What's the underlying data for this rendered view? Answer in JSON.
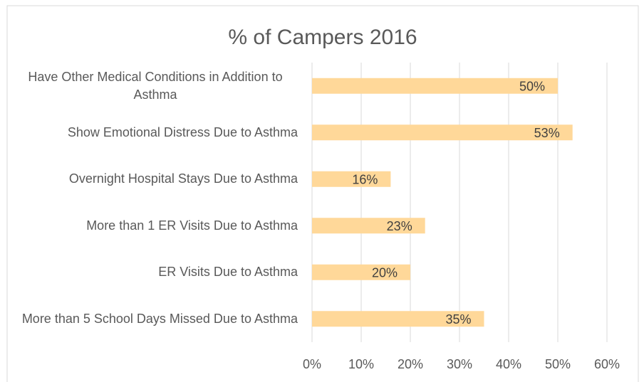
{
  "chart_data": {
    "type": "bar",
    "orientation": "horizontal",
    "title": "% of Campers 2016",
    "categories": [
      "Have Other Medical Conditions in Addition to Asthma",
      "Show Emotional Distress Due to Asthma",
      "Overnight Hospital Stays Due to Asthma",
      "More than 1 ER Visits Due to Asthma",
      "ER Visits Due to Asthma",
      "More than 5 School Days Missed Due to Asthma"
    ],
    "values": [
      50,
      53,
      16,
      23,
      20,
      35
    ],
    "value_labels": [
      "50%",
      "53%",
      "16%",
      "23%",
      "20%",
      "35%"
    ],
    "color": "#ffd899",
    "xlim": [
      0,
      60
    ],
    "xticks": [
      {
        "value": 0,
        "label": "0%"
      },
      {
        "value": 10,
        "label": "10%"
      },
      {
        "value": 20,
        "label": "20%"
      },
      {
        "value": 30,
        "label": "30%"
      },
      {
        "value": 40,
        "label": "40%"
      },
      {
        "value": 50,
        "label": "50%"
      },
      {
        "value": 60,
        "label": "60%"
      }
    ],
    "grid": true
  }
}
